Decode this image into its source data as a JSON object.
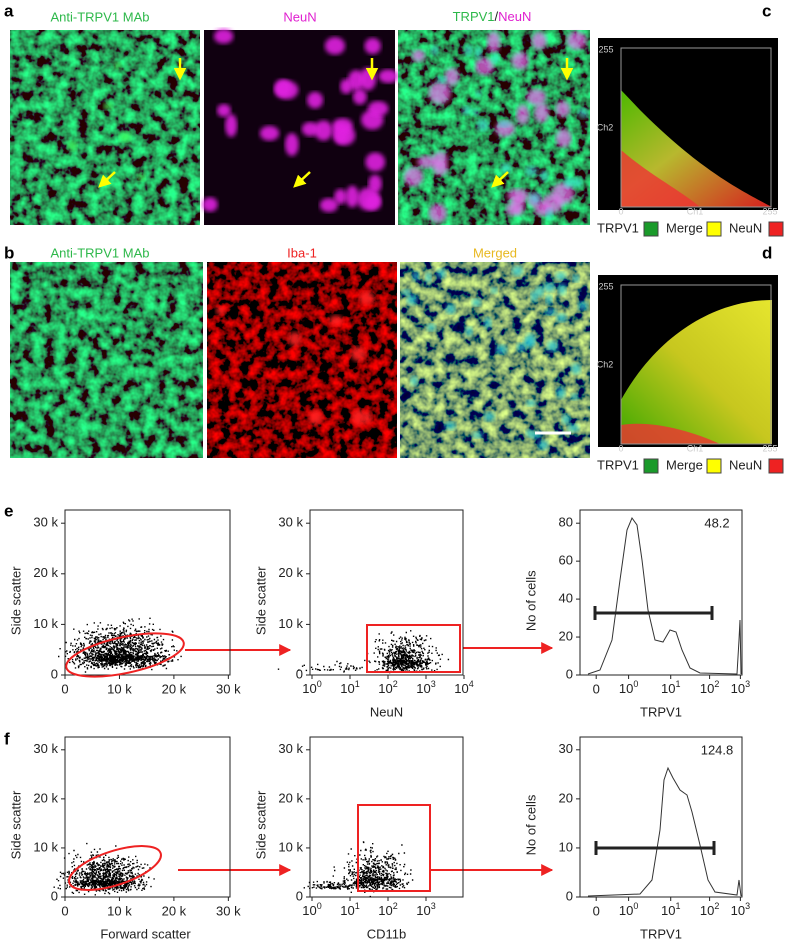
{
  "panel_labels": [
    "a",
    "b",
    "c",
    "d",
    "e",
    "f"
  ],
  "panel_a": {
    "titles": [
      "Anti-TRPV1 MAb",
      "NeuN"
    ],
    "merge_title": [
      "TRPV1",
      "/",
      "NeuN"
    ]
  },
  "panel_b": {
    "titles": [
      "Anti-TRPV1 MAb",
      "Iba-1",
      "Merged"
    ]
  },
  "colocalization": [
    {
      "y_max": "255",
      "y_label": "Ch2",
      "x_min": "0",
      "x_label": "Ch1",
      "x_max": "255",
      "legend": [
        "TRPV1",
        "Merge",
        "NeuN"
      ]
    },
    {
      "y_max": "255",
      "y_label": "Ch2",
      "x_min": "0",
      "x_label": "Ch1",
      "x_max": "255",
      "legend": [
        "TRPV1",
        "Merge",
        "NeuN"
      ]
    }
  ],
  "panel_e": {
    "plots": [
      {
        "y_label": "Side scatter",
        "y_ticks": [
          "30 k",
          "20 k",
          "10 k",
          "0"
        ],
        "x_ticks": [
          "0",
          "10 k",
          "20 k",
          "30 k"
        ]
      },
      {
        "y_label": "Side scatter",
        "y_ticks": [
          "30 k",
          "20 k",
          "10 k",
          "0"
        ],
        "x_label": "NeuN",
        "x_ticks": [
          {
            "base": "10",
            "exp": "0"
          },
          {
            "base": "10",
            "exp": "1"
          },
          {
            "base": "10",
            "exp": "2"
          },
          {
            "base": "10",
            "exp": "3"
          },
          {
            "base": "10",
            "exp": "4"
          }
        ]
      },
      {
        "y_label": "No of cells",
        "y_ticks": [
          "80",
          "60",
          "40",
          "20",
          "0"
        ],
        "x_label": "TRPV1",
        "gate_value": "48.2",
        "x_ticks": [
          "0",
          {
            "base": "10",
            "exp": "0"
          },
          {
            "base": "10",
            "exp": "1"
          },
          {
            "base": "10",
            "exp": "2"
          },
          {
            "base": "10",
            "exp": "3"
          }
        ]
      }
    ]
  },
  "panel_f": {
    "plots": [
      {
        "y_label": "Side scatter",
        "y_ticks": [
          "30 k",
          "20 k",
          "10 k",
          "0"
        ],
        "x_label": "Forward scatter",
        "x_ticks": [
          "0",
          "10 k",
          "20 k",
          "30 k"
        ]
      },
      {
        "y_label": "Side scatter",
        "y_ticks": [
          "30 k",
          "20 k",
          "10 k",
          "0"
        ],
        "x_label": "CD11b",
        "x_ticks": [
          {
            "base": "10",
            "exp": "0"
          },
          {
            "base": "10",
            "exp": "1"
          },
          {
            "base": "10",
            "exp": "2"
          },
          {
            "base": "10",
            "exp": "3"
          }
        ]
      },
      {
        "y_label": "No of cells",
        "y_ticks": [
          "30",
          "20",
          "10",
          "0"
        ],
        "x_label": "TRPV1",
        "gate_value": "124.8",
        "x_ticks": [
          "0",
          {
            "base": "10",
            "exp": "0"
          },
          {
            "base": "10",
            "exp": "1"
          },
          {
            "base": "10",
            "exp": "2"
          },
          {
            "base": "10",
            "exp": "3"
          }
        ]
      }
    ]
  }
}
